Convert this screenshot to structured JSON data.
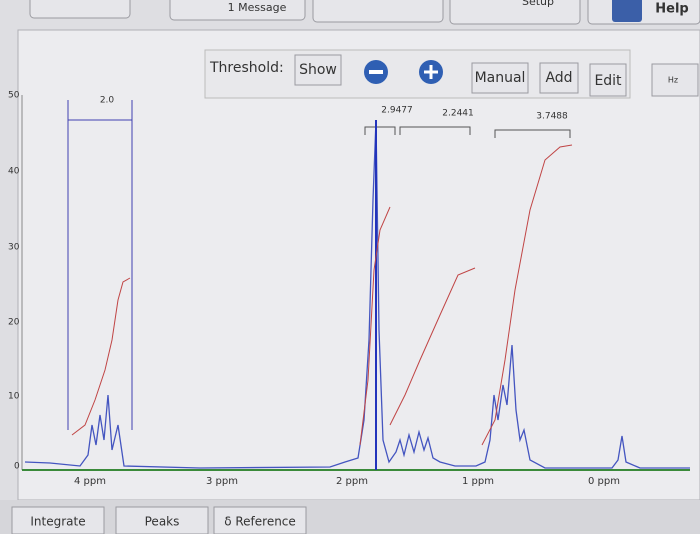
{
  "toolbar": {
    "message": "1 Message",
    "setup": "Setup",
    "help": "Help"
  },
  "controls": {
    "threshold": "Threshold:",
    "show": "Show",
    "manual": "Manual",
    "add": "Add",
    "edit": "Edit",
    "hz": "Hz"
  },
  "integrals": [
    "2.0",
    "2.9477",
    "2.2441",
    "3.7488"
  ],
  "y_axis": [
    "50",
    "40",
    "30",
    "20",
    "10",
    "0"
  ],
  "x_axis": [
    "4 ppm",
    "3 ppm",
    "2 ppm",
    "1 ppm",
    "0 ppm"
  ],
  "tabs": [
    "Integrate",
    "Peaks",
    "δ Reference"
  ]
}
